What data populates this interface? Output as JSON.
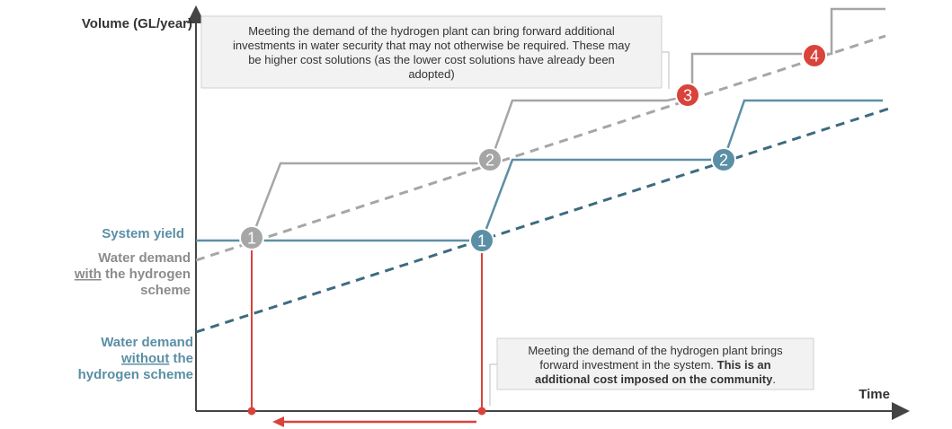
{
  "axes": {
    "y_label": "Volume (GL/year)",
    "x_label": "Time"
  },
  "legend_labels": {
    "system_yield": "System yield",
    "demand_with_line1": "Water demand",
    "demand_with_line2_underlined": "with",
    "demand_with_line2_rest": " the hydrogen",
    "demand_with_line3": "scheme",
    "demand_without_line1": "Water demand",
    "demand_without_line2_underlined": "without",
    "demand_without_line2_rest": " the",
    "demand_without_line3": "hydrogen scheme"
  },
  "notes": {
    "top": {
      "line1": "Meeting the demand of the hydrogen plant can bring forward additional",
      "line2": "investments in water security that may not otherwise be required. These may",
      "line3": "be higher cost solutions (as the lower cost solutions have already been",
      "line4": "adopted)"
    },
    "bottom": {
      "line1": "Meeting the demand of the hydrogen plant brings",
      "line2_normal": "forward investment in the system. ",
      "line2_bold": "This is an",
      "line3_bold": "additional cost imposed on the community",
      "line3_end": "."
    }
  },
  "markers": {
    "grey_1": "1",
    "grey_2": "2",
    "red_3": "3",
    "red_4": "4",
    "blue_1": "1",
    "blue_2": "2"
  },
  "colors": {
    "blue": "#5b8fa5",
    "grey": "#a6a6a6",
    "red": "#d9433b",
    "dark_blue": "#3d6b80",
    "axis": "#444444",
    "legend_grey": "#8c8c8c"
  }
}
